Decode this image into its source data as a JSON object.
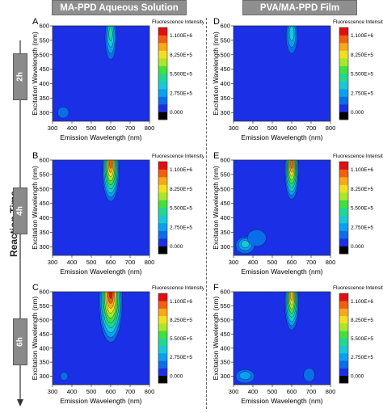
{
  "header": {
    "left_title": "MA-PPD Aqueous Solution",
    "right_title": "PVA/MA-PPD Film"
  },
  "side": {
    "reaction_time_label": "Reaction Time",
    "time_points": [
      "2h",
      "4h",
      "6h"
    ]
  },
  "colors": {
    "header_bg": "#8f8f8f",
    "timeline_box": "#8a8a8a",
    "plot_background": "#1a2fe6"
  },
  "chart_data": [
    {
      "panel": "A",
      "type": "heatmap",
      "title": "",
      "xlabel": "Emission Wavelength (nm)",
      "ylabel": "Excitation Wavelength (nm)",
      "xlim": [
        300,
        800
      ],
      "ylim": [
        270,
        600
      ],
      "xticks": [
        "300",
        "400",
        "500",
        "600",
        "700",
        "800"
      ],
      "yticks": [
        "300",
        "350",
        "400",
        "450",
        "500",
        "550",
        "600"
      ],
      "colorbar": {
        "title": "Fluorescence Intensity (u.a.)",
        "ticks": [
          "1.100E+6",
          "8.250E+5",
          "5.500E+5",
          "2.750E+5",
          "0.000"
        ]
      },
      "peaks": [
        {
          "x": 600,
          "y": 560,
          "intensity": 400000,
          "sx": 12,
          "sy": 32
        },
        {
          "x": 355,
          "y": 300,
          "intensity": 100000,
          "sx": 12,
          "sy": 8
        }
      ]
    },
    {
      "panel": "B",
      "type": "heatmap",
      "title": "",
      "xlabel": "Emission Wavelength (nm)",
      "ylabel": "Excitation Wavelength (nm)",
      "xlim": [
        300,
        800
      ],
      "ylim": [
        270,
        600
      ],
      "xticks": [
        "300",
        "400",
        "500",
        "600",
        "700",
        "800"
      ],
      "yticks": [
        "300",
        "350",
        "400",
        "450",
        "500",
        "550",
        "600"
      ],
      "colorbar": {
        "title": "Fluorescence Intensity (u.a.)",
        "ticks": [
          "1.100E+6",
          "8.250E+5",
          "5.500E+5",
          "2.750E+5",
          "0.000"
        ]
      },
      "peaks": [
        {
          "x": 600,
          "y": 565,
          "intensity": 1000000,
          "sx": 18,
          "sy": 45
        }
      ]
    },
    {
      "panel": "C",
      "type": "heatmap",
      "title": "",
      "xlabel": "Emission Wavelength (nm)",
      "ylabel": "Excitation Wavelength (nm)",
      "xlim": [
        300,
        800
      ],
      "ylim": [
        270,
        600
      ],
      "xticks": [
        "300",
        "400",
        "500",
        "600",
        "700",
        "800"
      ],
      "yticks": [
        "300",
        "350",
        "400",
        "450",
        "500",
        "550",
        "600"
      ],
      "colorbar": {
        "title": "Fluorescence Intensity (u.a.)",
        "ticks": [
          "1.100E+6",
          "8.250E+5",
          "5.500E+5",
          "2.750E+5",
          "0.000"
        ]
      },
      "peaks": [
        {
          "x": 600,
          "y": 565,
          "intensity": 1100000,
          "sx": 25,
          "sy": 60
        },
        {
          "x": 360,
          "y": 300,
          "intensity": 60000,
          "sx": 8,
          "sy": 6
        }
      ]
    },
    {
      "panel": "D",
      "type": "heatmap",
      "title": "",
      "xlabel": "Emission Wavelength (nm)",
      "ylabel": "Excitation Wavelength (nm)",
      "xlim": [
        300,
        800
      ],
      "ylim": [
        270,
        600
      ],
      "xticks": [
        "300",
        "400",
        "500",
        "600",
        "700",
        "800"
      ],
      "yticks": [
        "300",
        "350",
        "400",
        "450",
        "500",
        "550",
        "600"
      ],
      "colorbar": {
        "title": "Fluorescence Intensity (u.a.)",
        "ticks": [
          "1.100E+6",
          "8.250E+5",
          "5.500E+5",
          "2.750E+5",
          "0.000"
        ]
      },
      "peaks": [
        {
          "x": 600,
          "y": 565,
          "intensity": 350000,
          "sx": 12,
          "sy": 25
        }
      ]
    },
    {
      "panel": "E",
      "type": "heatmap",
      "title": "",
      "xlabel": "Emission Wavelength (nm)",
      "ylabel": "Excitation Wavelength (nm)",
      "xlim": [
        300,
        800
      ],
      "ylim": [
        270,
        600
      ],
      "xticks": [
        "300",
        "400",
        "500",
        "600",
        "700",
        "800"
      ],
      "yticks": [
        "300",
        "350",
        "400",
        "450",
        "500",
        "550",
        "600"
      ],
      "colorbar": {
        "title": "Fluorescence Intensity (u.a.)",
        "ticks": [
          "1.100E+6",
          "8.250E+5",
          "5.500E+5",
          "2.750E+5",
          "0.000"
        ]
      },
      "peaks": [
        {
          "x": 600,
          "y": 565,
          "intensity": 950000,
          "sx": 15,
          "sy": 42
        },
        {
          "x": 360,
          "y": 305,
          "intensity": 300000,
          "sx": 20,
          "sy": 12
        },
        {
          "x": 420,
          "y": 330,
          "intensity": 150000,
          "sx": 20,
          "sy": 12
        }
      ]
    },
    {
      "panel": "F",
      "type": "heatmap",
      "title": "",
      "xlabel": "Emission Wavelength (nm)",
      "ylabel": "Excitation Wavelength (nm)",
      "xlim": [
        300,
        800
      ],
      "ylim": [
        270,
        600
      ],
      "xticks": [
        "300",
        "400",
        "500",
        "600",
        "700",
        "800"
      ],
      "yticks": [
        "300",
        "350",
        "400",
        "450",
        "500",
        "550",
        "600"
      ],
      "colorbar": {
        "title": "Fluorescence Intensity (u.a.)",
        "ticks": [
          "1.100E+6",
          "8.250E+5",
          "5.500E+5",
          "2.750E+5",
          "0.000"
        ]
      },
      "peaks": [
        {
          "x": 600,
          "y": 565,
          "intensity": 900000,
          "sx": 15,
          "sy": 42
        },
        {
          "x": 360,
          "y": 300,
          "intensity": 200000,
          "sx": 20,
          "sy": 10
        },
        {
          "x": 690,
          "y": 305,
          "intensity": 90000,
          "sx": 12,
          "sy": 10
        }
      ]
    }
  ]
}
